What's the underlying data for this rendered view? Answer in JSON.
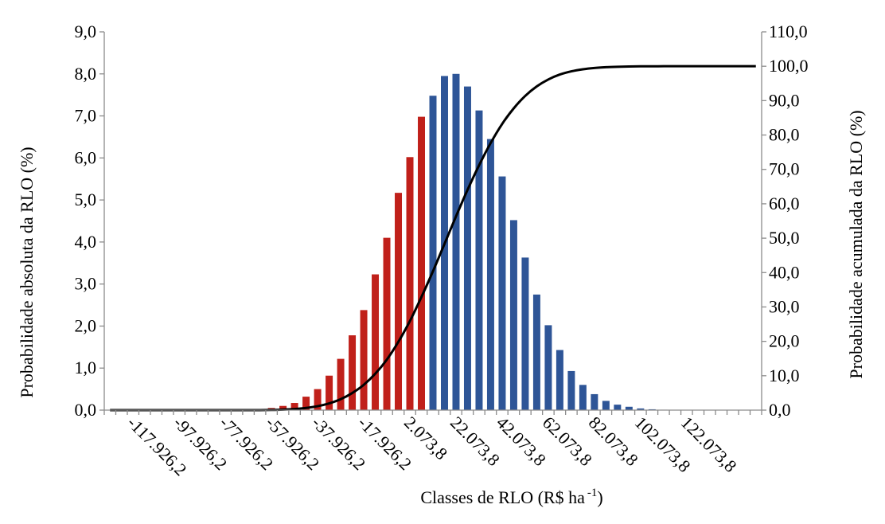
{
  "chart_data": {
    "type": "bar",
    "title": "",
    "xlabel": "Classes de RLO (R$ ha",
    "xlabel_sup": "-1",
    "xlabel_suffix": ")",
    "ylabel": "Probabilidade absoluta da RLO (%)",
    "y2label": "Probabilidade acumulada da RLO (%)",
    "ylim": [
      0,
      9
    ],
    "y2lim": [
      0,
      110
    ],
    "yticks": [
      "0,0",
      "1,0",
      "2,0",
      "3,0",
      "4,0",
      "5,0",
      "6,0",
      "7,0",
      "8,0",
      "9,0"
    ],
    "y2ticks": [
      "0,0",
      "10,0",
      "20,0",
      "30,0",
      "40,0",
      "50,0",
      "60,0",
      "70,0",
      "80,0",
      "90,0",
      "100,0",
      "110,0"
    ],
    "xtick_labels": [
      "-117.926,2",
      "-97.926,2",
      "-77.926,2",
      "-57.926,2",
      "-37.926,2",
      "-17.926,2",
      "2.073,8",
      "22.073,8",
      "42.073,8",
      "62.073,8",
      "82.073,8",
      "102.073,8",
      "122.073,8"
    ],
    "grid": false,
    "legend": "none",
    "colors": {
      "negative": "#C0201A",
      "positive": "#2E5597",
      "cumulative": "#000000"
    },
    "x_start": -127926.2,
    "x_step": 5000,
    "values": [
      0.0,
      0.0,
      0.0,
      0.0,
      0.0,
      0.0,
      0.0,
      0.0,
      0.0,
      0.0,
      0.0,
      0.0,
      0.0,
      0.0,
      0.05,
      0.1,
      0.17,
      0.32,
      0.5,
      0.82,
      1.22,
      1.78,
      2.38,
      3.23,
      4.1,
      5.17,
      6.02,
      6.98,
      7.48,
      7.95,
      8.0,
      7.7,
      7.13,
      6.45,
      5.56,
      4.52,
      3.63,
      2.75,
      2.02,
      1.43,
      0.93,
      0.6,
      0.38,
      0.22,
      0.13,
      0.08,
      0.04,
      0.02,
      0.01,
      0.0,
      0.0,
      0.0,
      0.0,
      0.0,
      0.0,
      0.0,
      0.0
    ],
    "negative_count": 28,
    "cumulative_label": "Probabilidade acumulada"
  }
}
